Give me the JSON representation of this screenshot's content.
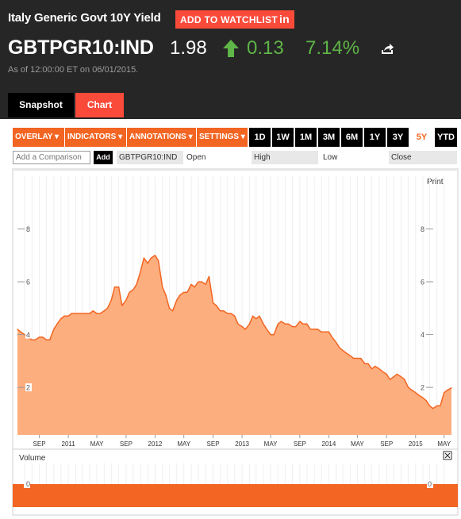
{
  "header": {
    "title": "Italy Generic Govt 10Y Yield",
    "watchlist_label": "ADD TO WATCHLIST",
    "watchlist_suffix": "in",
    "ticker": "GBTPGR10:IND",
    "price": "1.98",
    "change": "0.13",
    "change_pct": "7.14%",
    "as_of": "As of 12:00:00 ET on 06/01/2015.",
    "positive_color": "#5fb547",
    "accent_color": "#fa4a3a"
  },
  "tabs": [
    {
      "label": "Snapshot",
      "active": false
    },
    {
      "label": "Chart",
      "active": true
    }
  ],
  "toolbar": {
    "menus": [
      "OVERLAY",
      "INDICATORS",
      "ANNOTATIONS",
      "SETTINGS"
    ],
    "ranges": [
      "1D",
      "1W",
      "1M",
      "3M",
      "6M",
      "1Y",
      "3Y",
      "5Y",
      "YTD"
    ],
    "active_range": "5Y"
  },
  "compare": {
    "placeholder": "Add a Comparison",
    "add_label": "Add",
    "symbol": "GBTPGR10:IND",
    "quote_labels": [
      "Open",
      "High",
      "Low",
      "Close"
    ]
  },
  "print_label": "Print",
  "volume_label": "Volume",
  "chart_data": {
    "type": "area",
    "title": "",
    "xlabel": "",
    "ylabel": "",
    "ylim": [
      0.2,
      10.0
    ],
    "yticks": [
      2,
      4,
      6,
      8
    ],
    "x_ticks": [
      "SEP",
      "2011",
      "MAY",
      "SEP",
      "2012",
      "MAY",
      "SEP",
      "2013",
      "MAY",
      "SEP",
      "2014",
      "MAY",
      "SEP",
      "2015",
      "MAY"
    ],
    "x_range": [
      "2010-06-01",
      "2015-06-01"
    ],
    "fill_color": "#fdae7e",
    "line_color": "#f26522",
    "series": [
      {
        "x": [
          "2010-06-01",
          "2010-06-15",
          "2010-07-01",
          "2010-07-15",
          "2010-08-01",
          "2010-08-15",
          "2010-09-01",
          "2010-09-15",
          "2010-10-01",
          "2010-10-15",
          "2010-11-01",
          "2010-11-15",
          "2010-12-01",
          "2010-12-15",
          "2011-01-01",
          "2011-01-15",
          "2011-02-01",
          "2011-02-15",
          "2011-03-01",
          "2011-03-15",
          "2011-04-01",
          "2011-04-15",
          "2011-05-01",
          "2011-05-15",
          "2011-06-01",
          "2011-06-15",
          "2011-07-01",
          "2011-07-15",
          "2011-08-01",
          "2011-08-15",
          "2011-09-01",
          "2011-09-15",
          "2011-10-01",
          "2011-10-15",
          "2011-11-01",
          "2011-11-15",
          "2011-12-01",
          "2011-12-15",
          "2012-01-01",
          "2012-01-15",
          "2012-02-01",
          "2012-02-15",
          "2012-03-01",
          "2012-03-15",
          "2012-04-01",
          "2012-04-15",
          "2012-05-01",
          "2012-05-15",
          "2012-06-01",
          "2012-06-15",
          "2012-07-01",
          "2012-07-15",
          "2012-08-01",
          "2012-08-15",
          "2012-09-01",
          "2012-09-15",
          "2012-10-01",
          "2012-10-15",
          "2012-11-01",
          "2012-11-15",
          "2012-12-01",
          "2012-12-15",
          "2013-01-01",
          "2013-01-15",
          "2013-02-01",
          "2013-02-15",
          "2013-03-01",
          "2013-03-15",
          "2013-04-01",
          "2013-04-15",
          "2013-05-01",
          "2013-05-15",
          "2013-06-01",
          "2013-06-15",
          "2013-07-01",
          "2013-07-15",
          "2013-08-01",
          "2013-08-15",
          "2013-09-01",
          "2013-09-15",
          "2013-10-01",
          "2013-10-15",
          "2013-11-01",
          "2013-11-15",
          "2013-12-01",
          "2013-12-15",
          "2014-01-01",
          "2014-01-15",
          "2014-02-01",
          "2014-02-15",
          "2014-03-01",
          "2014-03-15",
          "2014-04-01",
          "2014-04-15",
          "2014-05-01",
          "2014-05-15",
          "2014-06-01",
          "2014-06-15",
          "2014-07-01",
          "2014-07-15",
          "2014-08-01",
          "2014-08-15",
          "2014-09-01",
          "2014-09-15",
          "2014-10-01",
          "2014-10-15",
          "2014-11-01",
          "2014-11-15",
          "2014-12-01",
          "2014-12-15",
          "2015-01-01",
          "2015-01-15",
          "2015-02-01",
          "2015-02-15",
          "2015-03-01",
          "2015-03-15",
          "2015-04-01",
          "2015-04-15",
          "2015-05-01",
          "2015-05-15",
          "2015-06-01"
        ],
        "y": [
          4.2,
          4.1,
          4.0,
          3.9,
          3.8,
          3.8,
          3.9,
          3.9,
          3.8,
          3.8,
          4.2,
          4.4,
          4.6,
          4.7,
          4.7,
          4.8,
          4.8,
          4.8,
          4.8,
          4.8,
          4.8,
          4.9,
          4.8,
          4.8,
          4.9,
          5.0,
          5.3,
          5.8,
          5.8,
          5.1,
          5.3,
          5.6,
          5.7,
          5.9,
          6.4,
          6.9,
          6.7,
          6.9,
          7.0,
          6.8,
          5.8,
          5.5,
          5.0,
          4.9,
          5.3,
          5.5,
          5.6,
          5.6,
          5.9,
          5.8,
          6.0,
          6.0,
          5.9,
          6.2,
          5.2,
          5.1,
          4.9,
          4.9,
          4.8,
          4.8,
          4.7,
          4.4,
          4.3,
          4.2,
          4.4,
          4.7,
          4.6,
          4.7,
          4.4,
          4.2,
          4.0,
          4.0,
          4.4,
          4.5,
          4.4,
          4.4,
          4.3,
          4.3,
          4.5,
          4.4,
          4.4,
          4.2,
          4.2,
          4.2,
          4.1,
          4.1,
          4.1,
          3.9,
          3.7,
          3.5,
          3.4,
          3.3,
          3.2,
          3.1,
          3.1,
          3.1,
          2.9,
          2.9,
          2.7,
          2.8,
          2.7,
          2.6,
          2.5,
          2.3,
          2.4,
          2.5,
          2.4,
          2.3,
          2.0,
          1.9,
          1.8,
          1.7,
          1.6,
          1.5,
          1.3,
          1.2,
          1.3,
          1.3,
          1.8,
          1.9,
          1.98
        ]
      }
    ]
  },
  "volume_data": {
    "type": "bar",
    "ylabel": "",
    "yticks": [
      0
    ]
  }
}
